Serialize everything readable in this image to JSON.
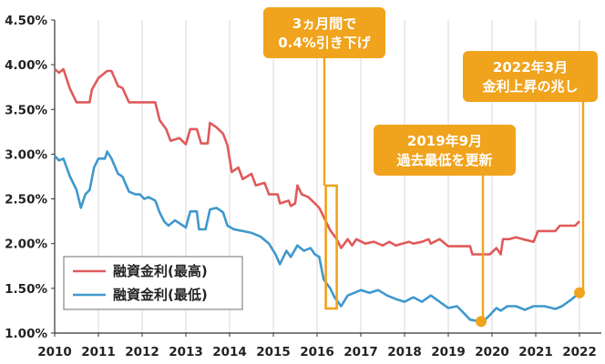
{
  "chart_data": {
    "type": "line",
    "xlim": [
      2010,
      2022.3
    ],
    "ylim": [
      1.0,
      4.6
    ],
    "x_ticks": [
      "2010",
      "2011",
      "2012",
      "2013",
      "2014",
      "2015",
      "2016",
      "2017",
      "2018",
      "2019",
      "2020",
      "2021",
      "2022"
    ],
    "y_ticks": [
      "4.50%",
      "4.00%",
      "3.50%",
      "3.00%",
      "2.50%",
      "2.00%",
      "1.50%",
      "1.00%"
    ],
    "grid": "vertical",
    "legend_placement": "bottom-left",
    "colors": {
      "max_series": "#e05a5a",
      "min_series": "#3f98cc",
      "callout": "#f0a31c"
    },
    "series": [
      {
        "name": "融資金利(最高)",
        "points": [
          [
            2010.0,
            3.95
          ],
          [
            2010.1,
            3.91
          ],
          [
            2010.2,
            3.95
          ],
          [
            2010.35,
            3.73
          ],
          [
            2010.5,
            3.58
          ],
          [
            2010.8,
            3.58
          ],
          [
            2010.85,
            3.72
          ],
          [
            2011.0,
            3.85
          ],
          [
            2011.2,
            3.93
          ],
          [
            2011.3,
            3.93
          ],
          [
            2011.45,
            3.76
          ],
          [
            2011.55,
            3.74
          ],
          [
            2011.7,
            3.58
          ],
          [
            2011.85,
            3.58
          ],
          [
            2012.3,
            3.58
          ],
          [
            2012.4,
            3.38
          ],
          [
            2012.55,
            3.28
          ],
          [
            2012.65,
            3.15
          ],
          [
            2012.85,
            3.18
          ],
          [
            2013.0,
            3.11
          ],
          [
            2013.1,
            3.28
          ],
          [
            2013.25,
            3.28
          ],
          [
            2013.35,
            3.12
          ],
          [
            2013.5,
            3.12
          ],
          [
            2013.55,
            3.35
          ],
          [
            2013.7,
            3.3
          ],
          [
            2013.85,
            3.23
          ],
          [
            2013.95,
            3.1
          ],
          [
            2014.05,
            2.8
          ],
          [
            2014.2,
            2.85
          ],
          [
            2014.3,
            2.72
          ],
          [
            2014.5,
            2.78
          ],
          [
            2014.6,
            2.65
          ],
          [
            2014.8,
            2.68
          ],
          [
            2014.9,
            2.55
          ],
          [
            2015.1,
            2.55
          ],
          [
            2015.15,
            2.45
          ],
          [
            2015.35,
            2.48
          ],
          [
            2015.4,
            2.42
          ],
          [
            2015.5,
            2.45
          ],
          [
            2015.55,
            2.65
          ],
          [
            2015.65,
            2.55
          ],
          [
            2015.8,
            2.52
          ],
          [
            2015.95,
            2.45
          ],
          [
            2016.05,
            2.4
          ],
          [
            2016.15,
            2.3
          ],
          [
            2016.3,
            2.15
          ],
          [
            2016.45,
            2.05
          ],
          [
            2016.55,
            1.95
          ],
          [
            2016.7,
            2.05
          ],
          [
            2016.8,
            1.98
          ],
          [
            2016.9,
            2.05
          ],
          [
            2017.1,
            2.0
          ],
          [
            2017.3,
            2.02
          ],
          [
            2017.5,
            1.98
          ],
          [
            2017.65,
            2.02
          ],
          [
            2017.8,
            1.98
          ],
          [
            2018.1,
            2.02
          ],
          [
            2018.2,
            2.0
          ],
          [
            2018.4,
            2.02
          ],
          [
            2018.55,
            2.05
          ],
          [
            2018.6,
            2.0
          ],
          [
            2018.8,
            2.05
          ],
          [
            2019.0,
            1.97
          ],
          [
            2019.3,
            1.97
          ],
          [
            2019.5,
            1.97
          ],
          [
            2019.55,
            1.88
          ],
          [
            2019.95,
            1.88
          ],
          [
            2020.1,
            1.95
          ],
          [
            2020.2,
            1.88
          ],
          [
            2020.25,
            2.05
          ],
          [
            2020.4,
            2.05
          ],
          [
            2020.55,
            2.07
          ],
          [
            2020.7,
            2.05
          ],
          [
            2020.95,
            2.02
          ],
          [
            2021.05,
            2.14
          ],
          [
            2021.45,
            2.14
          ],
          [
            2021.55,
            2.2
          ],
          [
            2021.9,
            2.2
          ],
          [
            2022.0,
            2.25
          ]
        ]
      },
      {
        "name": "融資金利(最低)",
        "points": [
          [
            2010.0,
            2.98
          ],
          [
            2010.1,
            2.93
          ],
          [
            2010.2,
            2.95
          ],
          [
            2010.35,
            2.75
          ],
          [
            2010.5,
            2.6
          ],
          [
            2010.6,
            2.4
          ],
          [
            2010.7,
            2.55
          ],
          [
            2010.8,
            2.6
          ],
          [
            2010.9,
            2.85
          ],
          [
            2011.0,
            2.95
          ],
          [
            2011.15,
            2.95
          ],
          [
            2011.2,
            3.03
          ],
          [
            2011.3,
            2.95
          ],
          [
            2011.45,
            2.78
          ],
          [
            2011.55,
            2.75
          ],
          [
            2011.7,
            2.58
          ],
          [
            2011.85,
            2.55
          ],
          [
            2011.95,
            2.55
          ],
          [
            2012.05,
            2.5
          ],
          [
            2012.15,
            2.52
          ],
          [
            2012.3,
            2.48
          ],
          [
            2012.4,
            2.35
          ],
          [
            2012.5,
            2.25
          ],
          [
            2012.6,
            2.2
          ],
          [
            2012.75,
            2.26
          ],
          [
            2013.0,
            2.18
          ],
          [
            2013.1,
            2.36
          ],
          [
            2013.25,
            2.36
          ],
          [
            2013.3,
            2.16
          ],
          [
            2013.45,
            2.16
          ],
          [
            2013.55,
            2.38
          ],
          [
            2013.7,
            2.4
          ],
          [
            2013.85,
            2.35
          ],
          [
            2013.95,
            2.2
          ],
          [
            2014.1,
            2.16
          ],
          [
            2014.3,
            2.14
          ],
          [
            2014.5,
            2.12
          ],
          [
            2014.7,
            2.08
          ],
          [
            2014.9,
            2.0
          ],
          [
            2015.05,
            1.88
          ],
          [
            2015.15,
            1.77
          ],
          [
            2015.3,
            1.92
          ],
          [
            2015.4,
            1.85
          ],
          [
            2015.55,
            1.98
          ],
          [
            2015.7,
            1.92
          ],
          [
            2015.85,
            1.95
          ],
          [
            2015.95,
            1.88
          ],
          [
            2016.05,
            1.85
          ],
          [
            2016.15,
            1.6
          ],
          [
            2016.3,
            1.5
          ],
          [
            2016.4,
            1.4
          ],
          [
            2016.55,
            1.3
          ],
          [
            2016.7,
            1.42
          ],
          [
            2016.85,
            1.45
          ],
          [
            2017.0,
            1.48
          ],
          [
            2017.2,
            1.45
          ],
          [
            2017.4,
            1.48
          ],
          [
            2017.6,
            1.42
          ],
          [
            2017.8,
            1.38
          ],
          [
            2018.0,
            1.35
          ],
          [
            2018.2,
            1.4
          ],
          [
            2018.4,
            1.35
          ],
          [
            2018.6,
            1.42
          ],
          [
            2018.8,
            1.35
          ],
          [
            2019.0,
            1.28
          ],
          [
            2019.2,
            1.3
          ],
          [
            2019.4,
            1.2
          ],
          [
            2019.5,
            1.15
          ],
          [
            2019.6,
            1.14
          ],
          [
            2019.8,
            1.13
          ],
          [
            2019.95,
            1.2
          ],
          [
            2020.1,
            1.28
          ],
          [
            2020.2,
            1.25
          ],
          [
            2020.35,
            1.3
          ],
          [
            2020.55,
            1.3
          ],
          [
            2020.75,
            1.26
          ],
          [
            2020.95,
            1.3
          ],
          [
            2021.2,
            1.3
          ],
          [
            2021.45,
            1.27
          ],
          [
            2021.6,
            1.3
          ],
          [
            2021.8,
            1.37
          ],
          [
            2022.0,
            1.45
          ]
        ]
      }
    ],
    "annotations": [
      {
        "lines": [
          "3ヵ月間で",
          "0.4%引き下げ"
        ]
      },
      {
        "lines": [
          "2019年9月",
          "過去最低を更新"
        ]
      },
      {
        "lines": [
          "2022年3月",
          "金利上昇の兆し"
        ]
      }
    ],
    "highlight_range": [
      2016.2,
      2016.45
    ],
    "markers": [
      [
        2019.75,
        1.13
      ],
      [
        2022.0,
        1.45
      ]
    ]
  }
}
